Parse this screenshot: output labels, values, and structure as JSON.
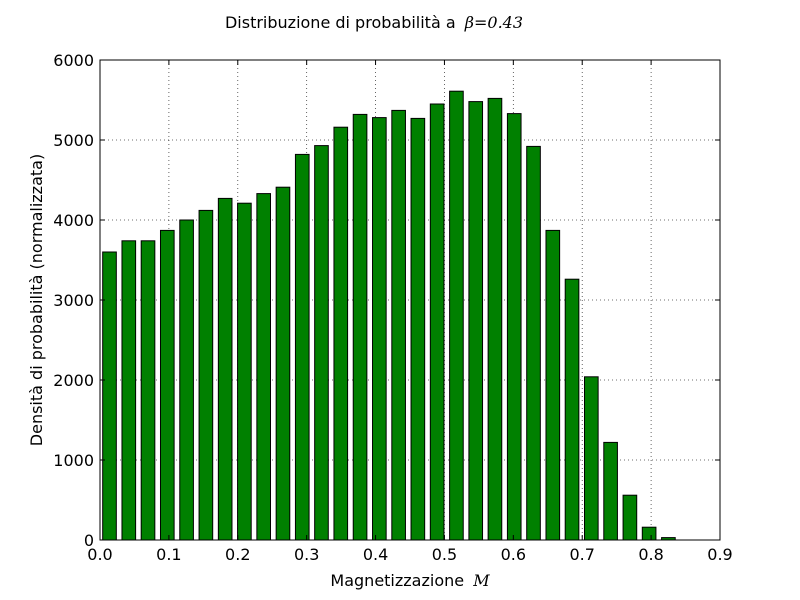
{
  "chart_data": {
    "type": "bar",
    "title": "Distribuzione di probabilità a",
    "title_math": "β=0.43",
    "xlabel": "Magnetizzazione",
    "xlabel_math": "M",
    "ylabel": "Densità di probabilità (normalizzata)",
    "xlim": [
      0.0,
      0.9
    ],
    "ylim": [
      0,
      6000
    ],
    "xticks": [
      "0.0",
      "0.1",
      "0.2",
      "0.3",
      "0.4",
      "0.5",
      "0.6",
      "0.7",
      "0.8",
      "0.9"
    ],
    "yticks": [
      "0",
      "1000",
      "2000",
      "3000",
      "4000",
      "5000",
      "6000"
    ],
    "grid": true,
    "bar_color": "#008000",
    "bar_width": 0.0198,
    "x": [
      0.0138,
      0.0418,
      0.0697,
      0.0977,
      0.1257,
      0.1537,
      0.1817,
      0.2096,
      0.2376,
      0.2656,
      0.2936,
      0.3215,
      0.3495,
      0.3775,
      0.4055,
      0.4335,
      0.4614,
      0.4894,
      0.5174,
      0.5454,
      0.5733,
      0.6013,
      0.6293,
      0.6573,
      0.6852,
      0.7132,
      0.7412,
      0.7692,
      0.7971,
      0.8251
    ],
    "values": [
      3600,
      3740,
      3740,
      3870,
      4000,
      4120,
      4270,
      4210,
      4330,
      4410,
      4820,
      4930,
      5160,
      5320,
      5280,
      5370,
      5270,
      5450,
      5610,
      5480,
      5520,
      5330,
      4920,
      3870,
      3260,
      2040,
      1220,
      560,
      160,
      30
    ]
  }
}
